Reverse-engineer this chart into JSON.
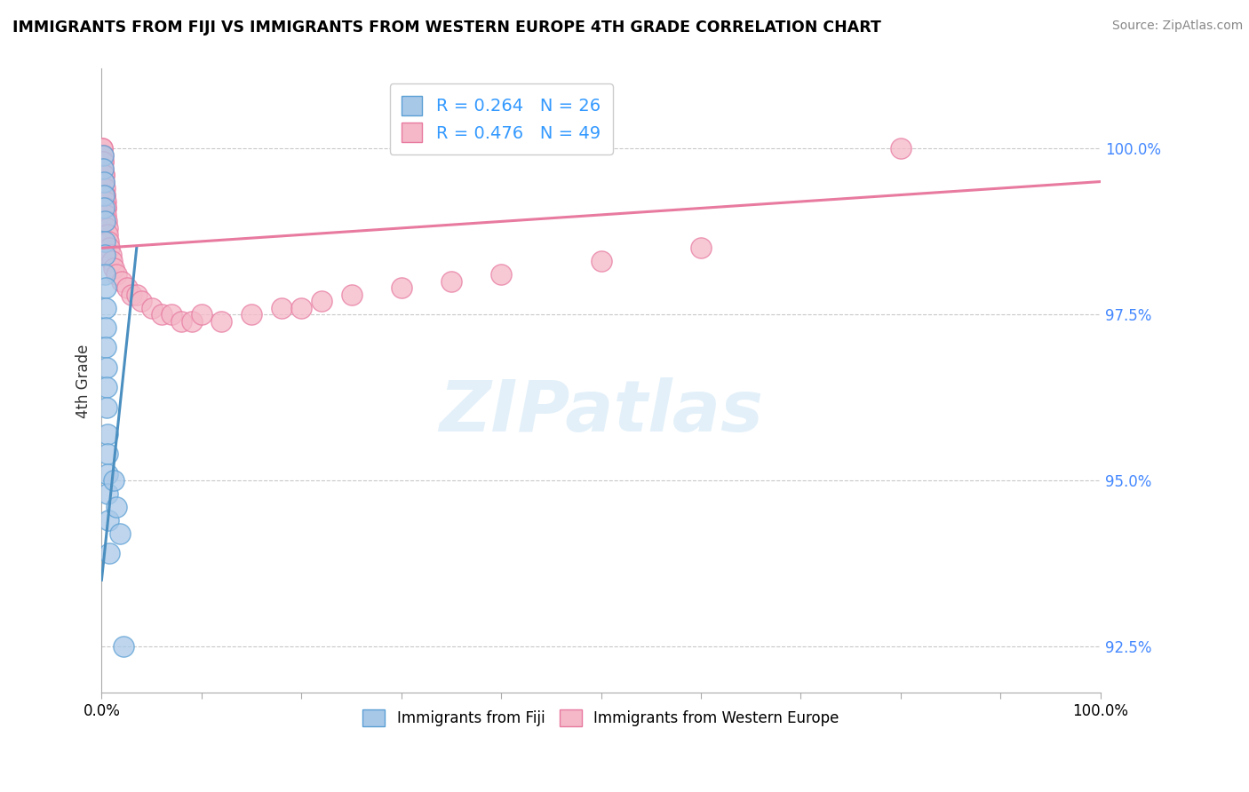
{
  "title": "IMMIGRANTS FROM FIJI VS IMMIGRANTS FROM WESTERN EUROPE 4TH GRADE CORRELATION CHART",
  "source": "Source: ZipAtlas.com",
  "ylabel": "4th Grade",
  "R1": 0.264,
  "N1": 26,
  "R2": 0.476,
  "N2": 49,
  "color_fiji": "#a8c8e8",
  "color_fiji_edge": "#5a9fd4",
  "color_europe": "#f4b8c8",
  "color_europe_edge": "#e87aa0",
  "color_line_fiji": "#4a8fc0",
  "color_line_europe": "#e87aa0",
  "watermark": "ZIPatlas",
  "legend_label1": "Immigrants from Fiji",
  "legend_label2": "Immigrants from Western Europe",
  "xlim": [
    0,
    100
  ],
  "ylim": [
    91.8,
    101.2
  ],
  "y_ticks": [
    92.5,
    95.0,
    97.5,
    100.0
  ],
  "x_major_ticks": [
    0,
    10,
    20,
    30,
    40,
    50,
    60,
    70,
    80,
    90,
    100
  ],
  "fiji_x": [
    0.15,
    0.18,
    0.2,
    0.22,
    0.25,
    0.28,
    0.3,
    0.32,
    0.35,
    0.38,
    0.4,
    0.42,
    0.45,
    0.48,
    0.5,
    0.52,
    0.55,
    0.58,
    0.6,
    0.62,
    0.7,
    0.8,
    1.2,
    1.5,
    1.8,
    2.2
  ],
  "fiji_y": [
    99.9,
    99.7,
    99.5,
    99.3,
    99.1,
    98.9,
    98.6,
    98.4,
    98.1,
    97.9,
    97.6,
    97.3,
    97.0,
    96.7,
    96.4,
    96.1,
    95.7,
    95.4,
    95.1,
    94.8,
    94.4,
    93.9,
    95.0,
    94.6,
    94.2,
    92.5
  ],
  "fiji_line_x": [
    0.0,
    3.5
  ],
  "fiji_line_y": [
    93.5,
    98.5
  ],
  "europe_x": [
    0.05,
    0.08,
    0.1,
    0.12,
    0.15,
    0.18,
    0.2,
    0.22,
    0.25,
    0.28,
    0.3,
    0.32,
    0.35,
    0.38,
    0.4,
    0.42,
    0.45,
    0.5,
    0.55,
    0.6,
    0.7,
    0.8,
    0.9,
    1.0,
    1.2,
    1.5,
    2.0,
    2.5,
    3.0,
    3.5,
    4.0,
    5.0,
    6.0,
    7.0,
    8.0,
    9.0,
    10.0,
    12.0,
    15.0,
    18.0,
    20.0,
    22.0,
    25.0,
    30.0,
    35.0,
    40.0,
    50.0,
    60.0,
    80.0
  ],
  "europe_y": [
    100.0,
    100.0,
    99.9,
    99.8,
    99.8,
    99.7,
    99.6,
    99.6,
    99.5,
    99.4,
    99.3,
    99.3,
    99.2,
    99.2,
    99.1,
    99.1,
    99.0,
    98.9,
    98.8,
    98.7,
    98.6,
    98.5,
    98.4,
    98.3,
    98.2,
    98.1,
    98.0,
    97.9,
    97.8,
    97.8,
    97.7,
    97.6,
    97.5,
    97.5,
    97.4,
    97.4,
    97.5,
    97.4,
    97.5,
    97.6,
    97.6,
    97.7,
    97.8,
    97.9,
    98.0,
    98.1,
    98.3,
    98.5,
    100.0
  ],
  "europe_line_x": [
    0.0,
    100.0
  ],
  "europe_line_y": [
    98.5,
    99.5
  ]
}
